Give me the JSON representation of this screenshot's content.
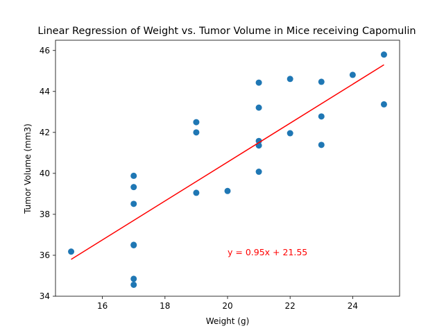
{
  "chart_data": {
    "type": "scatter",
    "title": "Linear Regression of Weight vs. Tumor Volume in Mice receiving Capomulin",
    "xlabel": "Weight (g)",
    "ylabel": "Tumor Volume (mm3)",
    "xlim": [
      14.5,
      25.5
    ],
    "ylim": [
      34,
      46.5
    ],
    "xticks": [
      16,
      18,
      20,
      22,
      24
    ],
    "yticks": [
      34,
      36,
      38,
      40,
      42,
      44,
      46
    ],
    "grid": false,
    "point_color": "#1f77b4",
    "line_color": "#ff0000",
    "points": [
      {
        "x": 15,
        "y": 36.18
      },
      {
        "x": 17,
        "y": 39.88
      },
      {
        "x": 17,
        "y": 39.33
      },
      {
        "x": 17,
        "y": 38.51
      },
      {
        "x": 17,
        "y": 36.51
      },
      {
        "x": 17,
        "y": 36.49
      },
      {
        "x": 17,
        "y": 34.85
      },
      {
        "x": 17,
        "y": 34.56
      },
      {
        "x": 19,
        "y": 42.5
      },
      {
        "x": 19,
        "y": 42.0
      },
      {
        "x": 19,
        "y": 39.05
      },
      {
        "x": 20,
        "y": 39.14
      },
      {
        "x": 21,
        "y": 44.43
      },
      {
        "x": 21,
        "y": 43.21
      },
      {
        "x": 21,
        "y": 41.58
      },
      {
        "x": 21,
        "y": 41.36
      },
      {
        "x": 21,
        "y": 40.08
      },
      {
        "x": 22,
        "y": 44.61
      },
      {
        "x": 22,
        "y": 41.96
      },
      {
        "x": 23,
        "y": 44.47
      },
      {
        "x": 23,
        "y": 42.78
      },
      {
        "x": 23,
        "y": 41.39
      },
      {
        "x": 24,
        "y": 44.81
      },
      {
        "x": 25,
        "y": 45.8
      },
      {
        "x": 25,
        "y": 43.37
      }
    ],
    "regression": {
      "slope": 0.95,
      "intercept": 21.55,
      "x_range": [
        15,
        25
      ]
    },
    "annotation": {
      "text": "y = 0.95x + 21.55",
      "x": 20,
      "y": 36
    }
  }
}
